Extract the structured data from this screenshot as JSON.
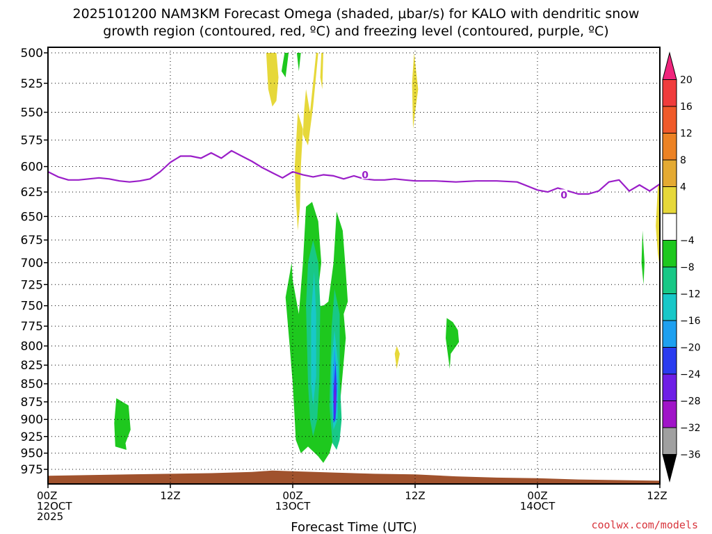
{
  "chart_data": {
    "type": "heatmap",
    "title": [
      "2025101200 NAM3KM Forecast Omega (shaded, μbar/s) for KALO with dendritic snow",
      "growth region (contoured, red, ºC) and freezing level (contoured, purple, ºC)"
    ],
    "xlabel": "Forecast Time (UTC)",
    "ylabel": "Pressure (mb)",
    "x_ticks": [
      {
        "hour": 0,
        "lines": [
          "00Z",
          "12OCT",
          "2025"
        ]
      },
      {
        "hour": 12,
        "lines": [
          "12Z"
        ]
      },
      {
        "hour": 24,
        "lines": [
          "00Z",
          "13OCT"
        ]
      },
      {
        "hour": 36,
        "lines": [
          "12Z"
        ]
      },
      {
        "hour": 48,
        "lines": [
          "00Z",
          "14OCT"
        ]
      },
      {
        "hour": 60,
        "lines": [
          "12Z"
        ]
      }
    ],
    "xlim": [
      0,
      60
    ],
    "y_ticks": [
      500,
      525,
      550,
      575,
      600,
      625,
      650,
      675,
      700,
      725,
      750,
      775,
      800,
      825,
      850,
      875,
      900,
      925,
      950,
      975
    ],
    "ylim": [
      500,
      1000
    ],
    "grid": true,
    "colorbar": {
      "labels": [
        "20",
        "16",
        "12",
        "8",
        "4",
        "−4",
        "−8",
        "−12",
        "−16",
        "−20",
        "−24",
        "−28",
        "−32",
        "−36"
      ],
      "colors_top_to_bottom": [
        "#f0247c",
        "#f03c3c",
        "#f05a2a",
        "#ec8224",
        "#e4aa32",
        "#e6d83a",
        "#ffffff",
        "#1ec81e",
        "#18c886",
        "#18c8c8",
        "#1ea0f0",
        "#2a3cf0",
        "#6e1ee6",
        "#a014c8",
        "#a0a0a0",
        "#000000"
      ]
    },
    "freezing_level": {
      "label": "0",
      "color": "#9a1ec8",
      "x": [
        0,
        1,
        2,
        3,
        4,
        5,
        6,
        7,
        8,
        9,
        10,
        11,
        12,
        13,
        14,
        15,
        16,
        17,
        18,
        19,
        20,
        21,
        22,
        23,
        24,
        25,
        26,
        27,
        28,
        29,
        30,
        31,
        32,
        33,
        34,
        35,
        36,
        38,
        40,
        42,
        44,
        46,
        48,
        49,
        50,
        51,
        52,
        53,
        54,
        55,
        56,
        57,
        58,
        59,
        60
      ],
      "y": [
        605,
        610,
        613,
        613,
        612,
        611,
        612,
        614,
        615,
        614,
        612,
        605,
        596,
        590,
        590,
        592,
        587,
        592,
        585,
        590,
        595,
        601,
        606,
        611,
        605,
        608,
        610,
        608,
        609,
        612,
        609,
        612,
        613,
        613,
        612,
        613,
        614,
        614,
        615,
        614,
        614,
        615,
        623,
        625,
        621,
        624,
        627,
        627,
        624,
        615,
        613,
        624,
        618,
        624,
        617
      ]
    },
    "terrain": {
      "color": "#a0522d",
      "x": [
        0,
        4,
        8,
        12,
        16,
        20,
        22,
        24,
        28,
        32,
        36,
        40,
        44,
        48,
        52,
        56,
        60
      ],
      "surface_mb": [
        985,
        984,
        983,
        982,
        981,
        979,
        977,
        978,
        980,
        982,
        983,
        986,
        988,
        989,
        991,
        992,
        993
      ]
    },
    "omega_regions": [
      {
        "value": "4",
        "x": [
          22.0,
          22.4,
          22.6,
          22.4,
          22.0,
          21.6,
          21.4
        ],
        "y": [
          500,
          500,
          520,
          540,
          545,
          530,
          500
        ]
      },
      {
        "value": "4",
        "x": [
          24.5,
          25.0,
          24.8,
          24.7,
          24.5,
          24.3,
          24.2
        ],
        "y": [
          550,
          565,
          600,
          640,
          665,
          630,
          600
        ]
      },
      {
        "value": "4",
        "x": [
          25.7,
          26.3,
          26.5,
          26.0,
          25.5,
          25.0,
          25.1,
          25.3
        ],
        "y": [
          550,
          500,
          500,
          545,
          580,
          570,
          550,
          530
        ]
      },
      {
        "value": "-4",
        "x": [
          23.2,
          23.6,
          23.3,
          22.9
        ],
        "y": [
          500,
          500,
          520,
          515
        ]
      },
      {
        "value": "4",
        "x": [
          26.8,
          27.0,
          26.9,
          26.7
        ],
        "y": [
          500,
          500,
          530,
          520
        ]
      },
      {
        "value": "-4",
        "x": [
          24.4,
          24.8,
          24.6
        ],
        "y": [
          500,
          500,
          515
        ]
      },
      {
        "value": "4",
        "x": [
          35.9,
          36.3,
          36.0,
          35.8,
          35.7
        ],
        "y": [
          500,
          530,
          550,
          565,
          525
        ]
      },
      {
        "value": "4",
        "x": [
          34.2,
          34.5,
          34.2,
          34.0
        ],
        "y": [
          800,
          810,
          830,
          810
        ]
      },
      {
        "value": "-4",
        "x": [
          25.3,
          25.9,
          26.5,
          26.8,
          26.4,
          26.6,
          27.0,
          27.5,
          28.0,
          28.3,
          28.9,
          29.2,
          29.4,
          29.0,
          29.2,
          28.5,
          27.6,
          27.0,
          26.5,
          25.5,
          24.8,
          24.3,
          24.2,
          24.0,
          23.7,
          23.3,
          23.9,
          24.0,
          24.6,
          25.0
        ],
        "y": [
          640,
          635,
          655,
          700,
          740,
          750,
          750,
          745,
          700,
          645,
          665,
          710,
          745,
          760,
          790,
          900,
          950,
          965,
          955,
          940,
          950,
          930,
          900,
          850,
          800,
          740,
          700,
          720,
          760,
          700
        ]
      },
      {
        "value": "-8",
        "x": [
          26.0,
          26.5,
          26.7,
          26.6,
          26.4,
          26.0,
          25.7,
          25.5,
          25.3,
          25.5
        ],
        "y": [
          675,
          700,
          750,
          850,
          900,
          925,
          900,
          850,
          750,
          700
        ]
      },
      {
        "value": "-8",
        "x": [
          28.1,
          28.6,
          28.6,
          28.8,
          28.6,
          28.3,
          27.9,
          27.6,
          27.8
        ],
        "y": [
          730,
          760,
          840,
          900,
          930,
          945,
          935,
          880,
          780
        ]
      },
      {
        "value": "-12",
        "x": [
          26.1,
          26.3,
          26.3,
          26.0,
          25.8,
          25.8
        ],
        "y": [
          710,
          760,
          840,
          880,
          850,
          760
        ]
      },
      {
        "value": "-12",
        "x": [
          28.1,
          28.5,
          28.4,
          28.0,
          27.8,
          27.8
        ],
        "y": [
          780,
          830,
          900,
          915,
          880,
          820
        ]
      },
      {
        "value": "-16",
        "x": [
          28.1,
          28.4,
          28.3,
          28.0,
          27.9
        ],
        "y": [
          800,
          850,
          890,
          900,
          850
        ]
      },
      {
        "value": "-20",
        "x": [
          28.2,
          28.3,
          28.2,
          28.0,
          28.0
        ],
        "y": [
          820,
          860,
          900,
          905,
          860
        ]
      },
      {
        "value": "-24",
        "x": [
          28.15,
          28.25,
          28.15,
          28.05
        ],
        "y": [
          840,
          870,
          900,
          870
        ]
      },
      {
        "value": "-4",
        "x": [
          6.7,
          7.9,
          8.1,
          7.6,
          7.7,
          6.6,
          6.5
        ],
        "y": [
          870,
          880,
          915,
          935,
          945,
          940,
          905
        ]
      },
      {
        "value": "-4",
        "x": [
          39.1,
          39.7,
          40.2,
          40.3,
          39.5,
          39.4,
          39.0
        ],
        "y": [
          765,
          770,
          780,
          795,
          810,
          830,
          790
        ]
      },
      {
        "value": "-4",
        "x": [
          58.3,
          58.5,
          58.4,
          58.2
        ],
        "y": [
          665,
          700,
          725,
          700
        ]
      },
      {
        "value": "4",
        "x": [
          59.8,
          60.0,
          60.0,
          59.8,
          59.6
        ],
        "y": [
          620,
          615,
          705,
          690,
          660
        ]
      }
    ]
  },
  "credit": "coolwx.com/models"
}
